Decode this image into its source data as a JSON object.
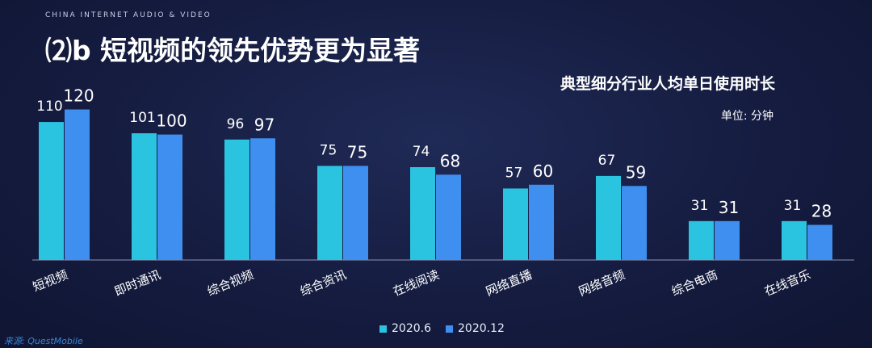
{
  "header": {
    "brand": "CHINA INTERNET AUDIO & VIDEO",
    "title": "⑵b 短视频的领先优势更为显著"
  },
  "watermark": "来源: QuestMobile",
  "colors": {
    "series1": "#2bc4e0",
    "series2": "#3f8ff0",
    "axis": "#8a93b8"
  },
  "chart_data": {
    "type": "bar",
    "title": "典型细分行业人均单日使用时长",
    "unit": "单位: 分钟",
    "categories": [
      "短视频",
      "即时通讯",
      "综合视频",
      "综合资讯",
      "在线阅读",
      "网络直播",
      "网络音频",
      "综合电商",
      "在线音乐"
    ],
    "series": [
      {
        "name": "2020.6",
        "values": [
          110,
          101,
          96,
          75,
          74,
          57,
          67,
          31,
          31
        ]
      },
      {
        "name": "2020.12",
        "values": [
          120,
          100,
          97,
          75,
          68,
          60,
          59,
          31,
          28
        ]
      }
    ],
    "ylim": [
      0,
      130
    ],
    "legend_position": "bottom-center",
    "grid": false
  }
}
